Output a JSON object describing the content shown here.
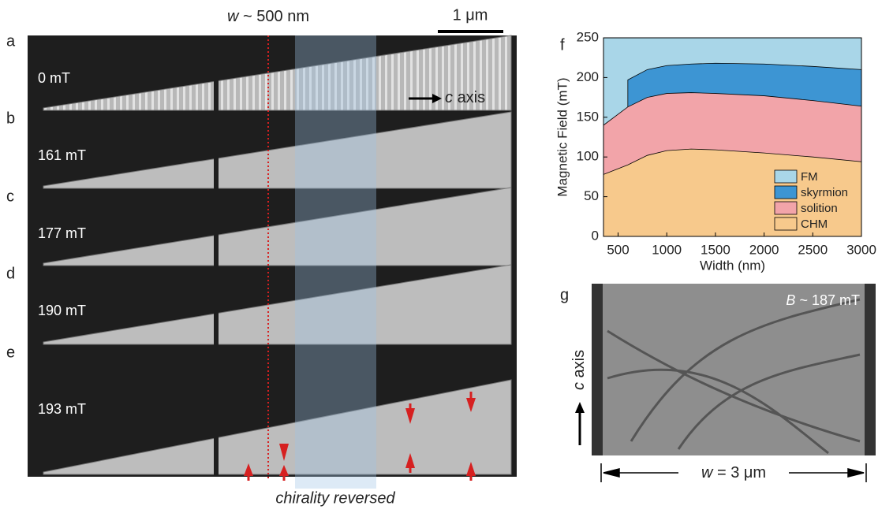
{
  "panels": [
    {
      "label": "a",
      "field": "0 mT"
    },
    {
      "label": "b",
      "field": "161 mT"
    },
    {
      "label": "c",
      "field": "177 mT"
    },
    {
      "label": "d",
      "field": "190 mT"
    },
    {
      "label": "e",
      "field": "193 mT"
    }
  ],
  "scale_bar": "1 μm",
  "width_marker": {
    "symbol": "w",
    "text": "~ 500 nm"
  },
  "axis_marker": {
    "symbol": "c",
    "text": "axis"
  },
  "chirality": "chirality reversed",
  "panel_f_label": "f",
  "panel_g": {
    "label": "g",
    "field": {
      "symbol": "B",
      "text": "~ 187 mT"
    },
    "axis": {
      "symbol": "c",
      "text": "axis"
    },
    "width": {
      "symbol": "w",
      "text": "= 3 μm"
    }
  },
  "chart_data": {
    "type": "area",
    "x_label": "Width (nm)",
    "y_label": "Magnetic Field (mT)",
    "x": [
      350,
      600,
      800,
      1000,
      1250,
      1500,
      2000,
      2500,
      3000
    ],
    "series": [
      {
        "name": "FM",
        "color": "#a9d6e8",
        "values": [
          250,
          250,
          250,
          250,
          250,
          250,
          250,
          250,
          250
        ]
      },
      {
        "name": "skyrmion",
        "color": "#3d95d3",
        "values": [
          null,
          197,
          210,
          215,
          217,
          218,
          217,
          214,
          210
        ]
      },
      {
        "name": "solition",
        "color": "#f2a4a9",
        "values": [
          140,
          163,
          175,
          180,
          181,
          180,
          177,
          171,
          164
        ]
      },
      {
        "name": "CHM",
        "color": "#f7c98c",
        "values": [
          78,
          90,
          102,
          108,
          110,
          109,
          105,
          100,
          94
        ]
      }
    ],
    "xlim": [
      350,
      3000
    ],
    "xticks": [
      500,
      1000,
      1500,
      2000,
      2500,
      3000
    ],
    "ylim": [
      0,
      250
    ],
    "yticks": [
      0,
      50,
      100,
      150,
      200,
      250
    ],
    "legend": "lower right"
  }
}
